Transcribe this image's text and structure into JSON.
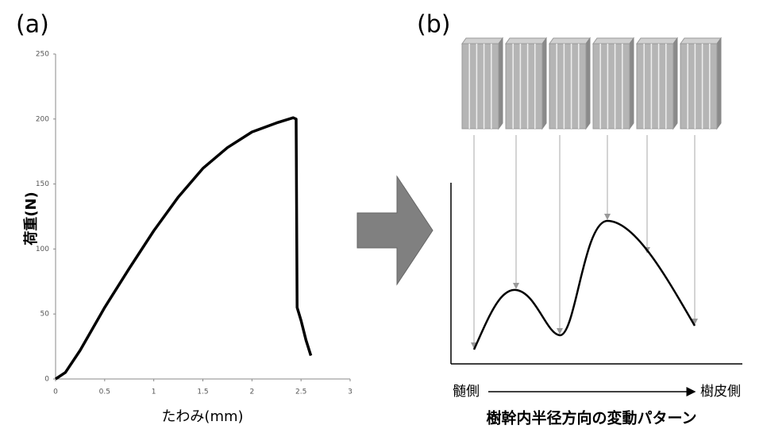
{
  "chart_data": [
    {
      "type": "line",
      "panel_label": "(a)",
      "xlabel": "たわみ(mm)",
      "ylabel": "荷重(N)",
      "x": [
        0,
        0.1,
        0.25,
        0.5,
        0.75,
        1,
        1.25,
        1.5,
        1.75,
        2,
        2.25,
        2.42,
        2.45,
        2.46,
        2.5,
        2.55,
        2.6
      ],
      "values": [
        0,
        5,
        22,
        55,
        85,
        114,
        140,
        162,
        178,
        190,
        197,
        201,
        200,
        55,
        45,
        30,
        18
      ],
      "color": "#000000",
      "xlim": [
        0,
        3
      ],
      "xticks": [
        0,
        0.5,
        1,
        1.5,
        2,
        2.5,
        3
      ],
      "ylim": [
        0,
        250
      ],
      "yticks": [
        0,
        50,
        100,
        150,
        200,
        250
      ],
      "grid": false
    }
  ],
  "diagram": {
    "panel_label": "(b)",
    "left_label": "髄側",
    "right_label": "樹皮側",
    "caption": "樹幹内半径方向の変動パターン"
  }
}
